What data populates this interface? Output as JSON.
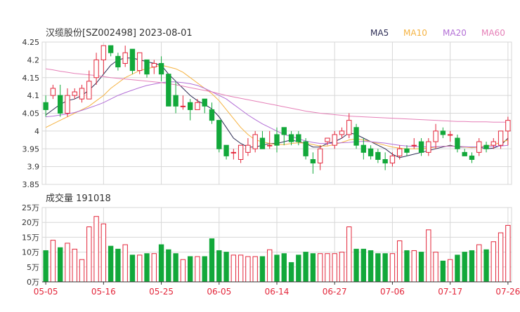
{
  "header": {
    "title": "汉缆股份[SZ002498] 2023-08-01",
    "legend": [
      {
        "label": "MA5",
        "color": "#2c2c54"
      },
      {
        "label": "MA10",
        "color": "#f5b342"
      },
      {
        "label": "MA20",
        "color": "#b36fd6"
      },
      {
        "label": "MA60",
        "color": "#e57fb7"
      }
    ]
  },
  "colors": {
    "up": "#e3263a",
    "down": "#12a83a",
    "grid": "#d7d7d7",
    "axis": "#333333"
  },
  "volume_title": "成交量 191018",
  "chart_data": [
    {
      "type": "candlestick",
      "title": "汉缆股份[SZ002498] 2023-08-01",
      "ylim": [
        3.85,
        4.25
      ],
      "yticks": [
        3.85,
        3.9,
        3.95,
        4,
        4.05,
        4.1,
        4.15,
        4.2,
        4.25
      ],
      "ytick_labels": [
        "3.85",
        "3.9",
        "3.95",
        "4",
        "4.05",
        "4.1",
        "4.15",
        "4.2",
        "4.25"
      ],
      "ohlc": [
        [
          4.08,
          4.1,
          4.04,
          4.06
        ],
        [
          4.1,
          4.13,
          4.09,
          4.12
        ],
        [
          4.1,
          4.13,
          4.04,
          4.05
        ],
        [
          4.05,
          4.12,
          4.04,
          4.1
        ],
        [
          4.1,
          4.12,
          4.09,
          4.11
        ],
        [
          4.09,
          4.13,
          4.08,
          4.12
        ],
        [
          4.09,
          4.17,
          4.09,
          4.14
        ],
        [
          4.15,
          4.22,
          4.13,
          4.2
        ],
        [
          4.2,
          4.24,
          4.16,
          4.24
        ],
        [
          4.24,
          4.24,
          4.21,
          4.22
        ],
        [
          4.21,
          4.22,
          4.17,
          4.18
        ],
        [
          4.19,
          4.24,
          4.18,
          4.22
        ],
        [
          4.23,
          4.23,
          4.16,
          4.17
        ],
        [
          4.17,
          4.22,
          4.16,
          4.22
        ],
        [
          4.2,
          4.2,
          4.15,
          4.16
        ],
        [
          4.18,
          4.2,
          4.16,
          4.19
        ],
        [
          4.19,
          4.21,
          4.14,
          4.16
        ],
        [
          4.16,
          4.16,
          4.07,
          4.07
        ],
        [
          4.1,
          4.14,
          4.05,
          4.07
        ],
        [
          4.07,
          4.1,
          4.06,
          4.07
        ],
        [
          4.08,
          4.09,
          4.03,
          4.06
        ],
        [
          4.06,
          4.09,
          4.06,
          4.08
        ],
        [
          4.09,
          4.09,
          4.05,
          4.07
        ],
        [
          4.06,
          4.08,
          4.02,
          4.03
        ],
        [
          4.03,
          4.03,
          3.94,
          3.95
        ],
        [
          3.96,
          3.96,
          3.92,
          3.93
        ],
        [
          3.94,
          3.95,
          3.92,
          3.94
        ],
        [
          3.92,
          3.96,
          3.91,
          3.96
        ],
        [
          3.94,
          3.98,
          3.93,
          3.96
        ],
        [
          3.95,
          4.0,
          3.94,
          3.99
        ],
        [
          3.98,
          4.0,
          3.95,
          3.95
        ],
        [
          3.96,
          4.0,
          3.95,
          3.96
        ],
        [
          3.99,
          4.01,
          3.94,
          3.96
        ],
        [
          4.01,
          4.01,
          3.96,
          3.99
        ],
        [
          3.99,
          4.0,
          3.96,
          3.97
        ],
        [
          3.99,
          4.0,
          3.96,
          3.97
        ],
        [
          3.97,
          3.98,
          3.92,
          3.93
        ],
        [
          3.92,
          3.94,
          3.88,
          3.91
        ],
        [
          3.91,
          3.96,
          3.89,
          3.95
        ],
        [
          3.97,
          3.98,
          3.96,
          3.98
        ],
        [
          3.96,
          4.0,
          3.95,
          3.99
        ],
        [
          3.99,
          4.01,
          3.98,
          4.0
        ],
        [
          3.99,
          4.05,
          3.98,
          4.03
        ],
        [
          4.01,
          4.02,
          3.95,
          3.96
        ],
        [
          3.96,
          3.98,
          3.92,
          3.94
        ],
        [
          3.95,
          3.96,
          3.92,
          3.93
        ],
        [
          3.94,
          3.95,
          3.91,
          3.92
        ],
        [
          3.92,
          3.94,
          3.89,
          3.91
        ],
        [
          3.91,
          3.94,
          3.9,
          3.93
        ],
        [
          3.93,
          3.96,
          3.92,
          3.95
        ],
        [
          3.95,
          3.96,
          3.93,
          3.94
        ],
        [
          3.96,
          3.98,
          3.95,
          3.96
        ],
        [
          3.97,
          3.98,
          3.93,
          3.94
        ],
        [
          3.94,
          3.98,
          3.93,
          3.97
        ],
        [
          3.97,
          4.02,
          3.95,
          4.0
        ],
        [
          4.0,
          4.01,
          3.98,
          3.99
        ],
        [
          3.99,
          4.0,
          3.97,
          3.99
        ],
        [
          3.98,
          3.99,
          3.94,
          3.95
        ],
        [
          3.94,
          3.95,
          3.93,
          3.93
        ],
        [
          3.93,
          3.94,
          3.91,
          3.92
        ],
        [
          3.94,
          3.98,
          3.93,
          3.97
        ],
        [
          3.96,
          3.97,
          3.94,
          3.95
        ],
        [
          3.96,
          3.98,
          3.95,
          3.97
        ],
        [
          3.96,
          4.0,
          3.95,
          4.0
        ],
        [
          4.0,
          4.04,
          3.96,
          4.03
        ]
      ],
      "ma": {
        "MA5": [
          4.045,
          4.06,
          4.075,
          4.085,
          4.09,
          4.1,
          4.115,
          4.135,
          4.16,
          4.185,
          4.2,
          4.205,
          4.205,
          4.2,
          4.195,
          4.19,
          4.185,
          4.16,
          4.14,
          4.12,
          4.1,
          4.085,
          4.075,
          4.062,
          4.04,
          4.01,
          3.98,
          3.965,
          3.955,
          3.955,
          3.96,
          3.965,
          3.965,
          3.97,
          3.975,
          3.97,
          3.965,
          3.955,
          3.955,
          3.965,
          3.97,
          3.98,
          3.995,
          3.99,
          3.98,
          3.97,
          3.96,
          3.95,
          3.935,
          3.925,
          3.93,
          3.935,
          3.94,
          3.945,
          3.95,
          3.955,
          3.96,
          3.955,
          3.955,
          3.955,
          3.955,
          3.95,
          3.952,
          3.96,
          3.98
        ],
        "MA10": [
          4.01,
          4.02,
          4.03,
          4.04,
          4.05,
          4.06,
          4.07,
          4.085,
          4.1,
          4.12,
          4.135,
          4.15,
          4.16,
          4.17,
          4.175,
          4.18,
          4.185,
          4.18,
          4.175,
          4.165,
          4.15,
          4.135,
          4.12,
          4.105,
          4.085,
          4.06,
          4.035,
          4.01,
          3.99,
          3.975,
          3.97,
          3.965,
          3.962,
          3.962,
          3.965,
          3.967,
          3.966,
          3.962,
          3.958,
          3.958,
          3.962,
          3.968,
          3.975,
          3.978,
          3.975,
          3.97,
          3.965,
          3.96,
          3.955,
          3.952,
          3.95,
          3.95,
          3.95,
          3.952,
          3.955,
          3.957,
          3.958,
          3.957,
          3.955,
          3.953,
          3.955,
          3.958,
          3.962,
          3.968,
          3.975
        ],
        "MA20": [
          4.04,
          4.042,
          4.045,
          4.048,
          4.052,
          4.058,
          4.065,
          4.072,
          4.08,
          4.09,
          4.1,
          4.108,
          4.115,
          4.122,
          4.128,
          4.132,
          4.136,
          4.138,
          4.138,
          4.136,
          4.133,
          4.128,
          4.12,
          4.11,
          4.1,
          4.09,
          4.075,
          4.06,
          4.045,
          4.032,
          4.02,
          4.01,
          4.0,
          3.99,
          3.985,
          3.978,
          3.972,
          3.968,
          3.965,
          3.965,
          3.966,
          3.967,
          3.968,
          3.97,
          3.971,
          3.97,
          3.968,
          3.966,
          3.963,
          3.96,
          3.958,
          3.957,
          3.956,
          3.955,
          3.956,
          3.957,
          3.957,
          3.957,
          3.956,
          3.955,
          3.955,
          3.956,
          3.957,
          3.958,
          3.96
        ],
        "MA60": [
          4.175,
          4.172,
          4.168,
          4.165,
          4.162,
          4.16,
          4.158,
          4.156,
          4.153,
          4.15,
          4.148,
          4.146,
          4.144,
          4.142,
          4.14,
          4.138,
          4.136,
          4.133,
          4.13,
          4.126,
          4.122,
          4.118,
          4.114,
          4.11,
          4.105,
          4.1,
          4.096,
          4.092,
          4.088,
          4.084,
          4.08,
          4.076,
          4.072,
          4.068,
          4.064,
          4.06,
          4.056,
          4.053,
          4.05,
          4.048,
          4.046,
          4.044,
          4.042,
          4.041,
          4.04,
          4.039,
          4.038,
          4.037,
          4.036,
          4.035,
          4.034,
          4.033,
          4.032,
          4.031,
          4.03,
          4.029,
          4.028,
          4.027,
          4.027,
          4.026,
          4.026,
          4.026,
          4.025,
          4.025,
          4.025
        ]
      }
    },
    {
      "type": "bar",
      "title": "成交量 191018",
      "ylim": [
        0,
        25
      ],
      "yticks": [
        0,
        5,
        10,
        15,
        20,
        25
      ],
      "ytick_labels": [
        "0万",
        "5万",
        "10万",
        "15万",
        "20万",
        "25万"
      ],
      "values": [
        10.5,
        14,
        11.5,
        13,
        11,
        7.5,
        18.5,
        22,
        19.5,
        12,
        11,
        12.5,
        9,
        9,
        9.5,
        9.5,
        12.5,
        10.8,
        9.5,
        7.5,
        8.5,
        8.5,
        8.5,
        14.5,
        10.5,
        10,
        9,
        9,
        8.5,
        8.5,
        8.5,
        10.8,
        9,
        9.5,
        6.5,
        9,
        10,
        9.5,
        9.5,
        9.5,
        9.5,
        10,
        18.5,
        11,
        11,
        10.5,
        9.5,
        9.5,
        9.5,
        13.8,
        10.5,
        10.5,
        10,
        17.5,
        10,
        7,
        7.5,
        9,
        10,
        10.5,
        12.5,
        10.8,
        13.5,
        16.5,
        19
      ]
    }
  ],
  "x_axis": {
    "labels": [
      "05-05",
      "05-16",
      "05-25",
      "06-05",
      "06-14",
      "06-27",
      "07-06",
      "07-17",
      "07-26"
    ],
    "label_indices": [
      0,
      8,
      16,
      24,
      32,
      40,
      48,
      56,
      64
    ]
  }
}
